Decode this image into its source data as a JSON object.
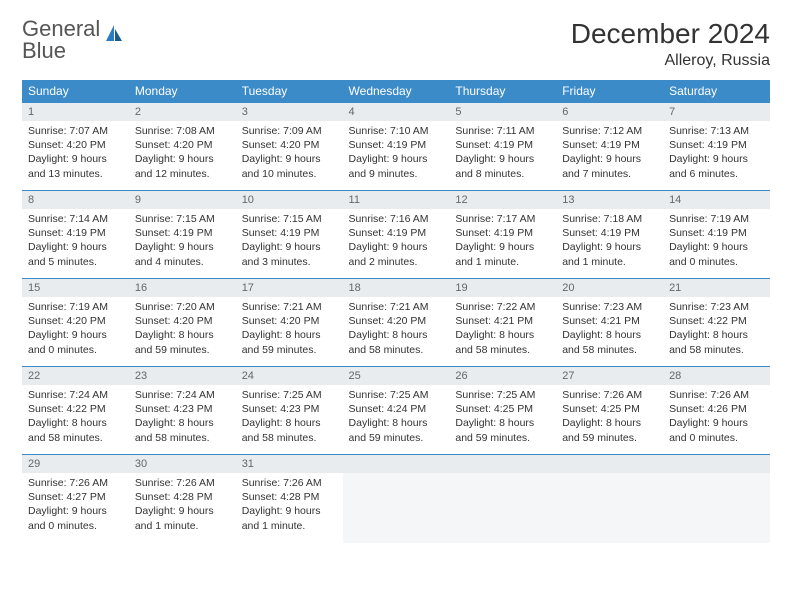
{
  "logo": {
    "line1": "General",
    "line2": "Blue"
  },
  "title": "December 2024",
  "location": "Alleroy, Russia",
  "colors": {
    "header_bg": "#3b8bc9",
    "header_text": "#ffffff",
    "daynum_bg": "#e8ecef",
    "border": "#3b8bc9",
    "logo_gray": "#555555",
    "logo_blue": "#2d7bc4"
  },
  "weekdays": [
    "Sunday",
    "Monday",
    "Tuesday",
    "Wednesday",
    "Thursday",
    "Friday",
    "Saturday"
  ],
  "days": [
    {
      "n": "1",
      "sr": "7:07 AM",
      "ss": "4:20 PM",
      "dl": "9 hours and 13 minutes."
    },
    {
      "n": "2",
      "sr": "7:08 AM",
      "ss": "4:20 PM",
      "dl": "9 hours and 12 minutes."
    },
    {
      "n": "3",
      "sr": "7:09 AM",
      "ss": "4:20 PM",
      "dl": "9 hours and 10 minutes."
    },
    {
      "n": "4",
      "sr": "7:10 AM",
      "ss": "4:19 PM",
      "dl": "9 hours and 9 minutes."
    },
    {
      "n": "5",
      "sr": "7:11 AM",
      "ss": "4:19 PM",
      "dl": "9 hours and 8 minutes."
    },
    {
      "n": "6",
      "sr": "7:12 AM",
      "ss": "4:19 PM",
      "dl": "9 hours and 7 minutes."
    },
    {
      "n": "7",
      "sr": "7:13 AM",
      "ss": "4:19 PM",
      "dl": "9 hours and 6 minutes."
    },
    {
      "n": "8",
      "sr": "7:14 AM",
      "ss": "4:19 PM",
      "dl": "9 hours and 5 minutes."
    },
    {
      "n": "9",
      "sr": "7:15 AM",
      "ss": "4:19 PM",
      "dl": "9 hours and 4 minutes."
    },
    {
      "n": "10",
      "sr": "7:15 AM",
      "ss": "4:19 PM",
      "dl": "9 hours and 3 minutes."
    },
    {
      "n": "11",
      "sr": "7:16 AM",
      "ss": "4:19 PM",
      "dl": "9 hours and 2 minutes."
    },
    {
      "n": "12",
      "sr": "7:17 AM",
      "ss": "4:19 PM",
      "dl": "9 hours and 1 minute."
    },
    {
      "n": "13",
      "sr": "7:18 AM",
      "ss": "4:19 PM",
      "dl": "9 hours and 1 minute."
    },
    {
      "n": "14",
      "sr": "7:19 AM",
      "ss": "4:19 PM",
      "dl": "9 hours and 0 minutes."
    },
    {
      "n": "15",
      "sr": "7:19 AM",
      "ss": "4:20 PM",
      "dl": "9 hours and 0 minutes."
    },
    {
      "n": "16",
      "sr": "7:20 AM",
      "ss": "4:20 PM",
      "dl": "8 hours and 59 minutes."
    },
    {
      "n": "17",
      "sr": "7:21 AM",
      "ss": "4:20 PM",
      "dl": "8 hours and 59 minutes."
    },
    {
      "n": "18",
      "sr": "7:21 AM",
      "ss": "4:20 PM",
      "dl": "8 hours and 58 minutes."
    },
    {
      "n": "19",
      "sr": "7:22 AM",
      "ss": "4:21 PM",
      "dl": "8 hours and 58 minutes."
    },
    {
      "n": "20",
      "sr": "7:23 AM",
      "ss": "4:21 PM",
      "dl": "8 hours and 58 minutes."
    },
    {
      "n": "21",
      "sr": "7:23 AM",
      "ss": "4:22 PM",
      "dl": "8 hours and 58 minutes."
    },
    {
      "n": "22",
      "sr": "7:24 AM",
      "ss": "4:22 PM",
      "dl": "8 hours and 58 minutes."
    },
    {
      "n": "23",
      "sr": "7:24 AM",
      "ss": "4:23 PM",
      "dl": "8 hours and 58 minutes."
    },
    {
      "n": "24",
      "sr": "7:25 AM",
      "ss": "4:23 PM",
      "dl": "8 hours and 58 minutes."
    },
    {
      "n": "25",
      "sr": "7:25 AM",
      "ss": "4:24 PM",
      "dl": "8 hours and 59 minutes."
    },
    {
      "n": "26",
      "sr": "7:25 AM",
      "ss": "4:25 PM",
      "dl": "8 hours and 59 minutes."
    },
    {
      "n": "27",
      "sr": "7:26 AM",
      "ss": "4:25 PM",
      "dl": "8 hours and 59 minutes."
    },
    {
      "n": "28",
      "sr": "7:26 AM",
      "ss": "4:26 PM",
      "dl": "9 hours and 0 minutes."
    },
    {
      "n": "29",
      "sr": "7:26 AM",
      "ss": "4:27 PM",
      "dl": "9 hours and 0 minutes."
    },
    {
      "n": "30",
      "sr": "7:26 AM",
      "ss": "4:28 PM",
      "dl": "9 hours and 1 minute."
    },
    {
      "n": "31",
      "sr": "7:26 AM",
      "ss": "4:28 PM",
      "dl": "9 hours and 1 minute."
    }
  ],
  "labels": {
    "sunrise": "Sunrise:",
    "sunset": "Sunset:",
    "daylight": "Daylight:"
  }
}
